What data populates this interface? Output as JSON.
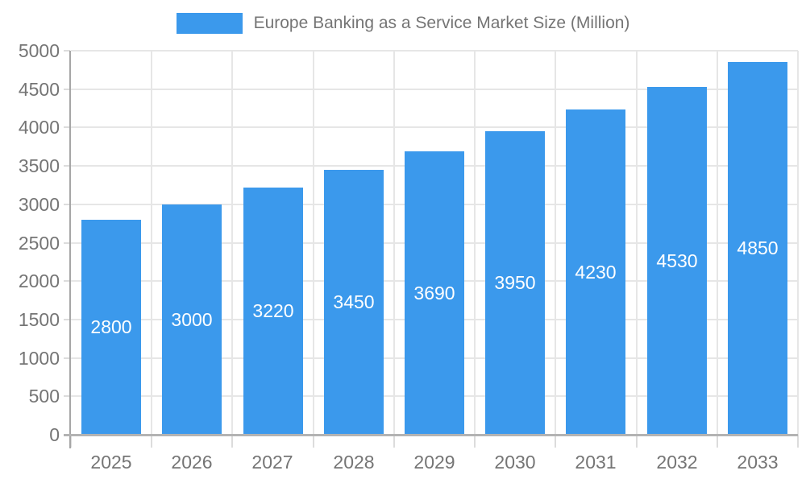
{
  "legend": {
    "label": "Europe Banking as a Service Market Size (Million)"
  },
  "chart_data": {
    "type": "bar",
    "title": "Europe Banking as a Service Market Size (Million)",
    "categories": [
      "2025",
      "2026",
      "2027",
      "2028",
      "2029",
      "2030",
      "2031",
      "2032",
      "2033"
    ],
    "values": [
      2800,
      3000,
      3220,
      3450,
      3690,
      3950,
      4230,
      4530,
      4850
    ],
    "xlabel": "",
    "ylabel": "",
    "ylim": [
      0,
      5000
    ],
    "ytick_step": 500,
    "yticks": [
      0,
      500,
      1000,
      1500,
      2000,
      2500,
      3000,
      3500,
      4000,
      4500,
      5000
    ],
    "grid": true,
    "legend_position": "top",
    "bar_labels_inside": true,
    "colors": {
      "bar": "#3b99ec",
      "bar_label": "#ffffff",
      "grid": "#e6e6e6",
      "axis_y": "#a6a6a6",
      "axis_x": "#b3b3b3",
      "tick": "#dcdcdc",
      "text": "#757575"
    }
  }
}
